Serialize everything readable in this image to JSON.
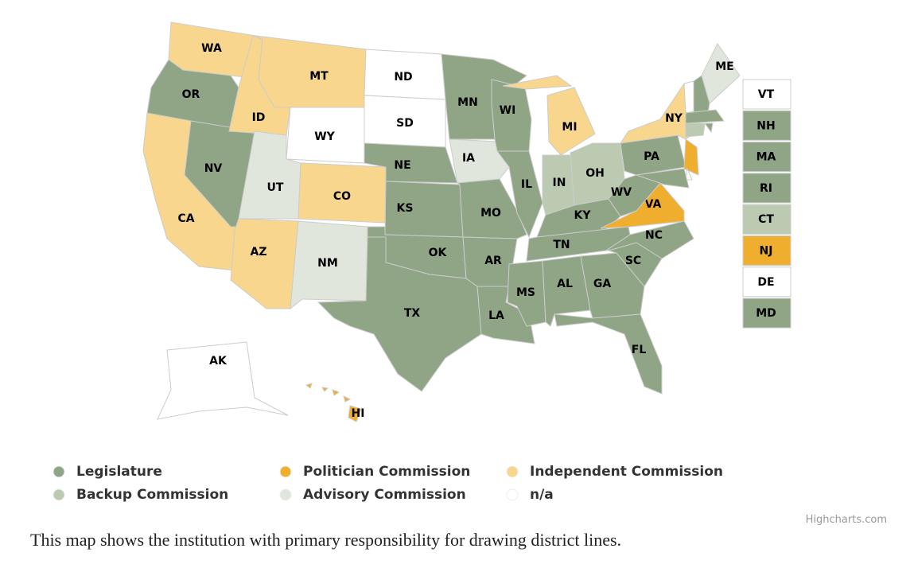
{
  "legend": [
    {
      "label": "Legislature",
      "color": "#8fa585"
    },
    {
      "label": "Politician Commission",
      "color": "#f0ae2e"
    },
    {
      "label": "Independent Commission",
      "color": "#f8d68e"
    },
    {
      "label": "Backup Commission",
      "color": "#bccab1"
    },
    {
      "label": "Advisory Commission",
      "color": "#e0e6dc"
    },
    {
      "label": "n/a",
      "color": "#ffffff"
    }
  ],
  "states": [
    {
      "label": "WA",
      "color": "#f8d68e"
    },
    {
      "label": "OR",
      "color": "#8fa585"
    },
    {
      "label": "CA",
      "color": "#f8d68e"
    },
    {
      "label": "NV",
      "color": "#8fa585"
    },
    {
      "label": "ID",
      "color": "#f8d68e"
    },
    {
      "label": "MT",
      "color": "#f8d68e"
    },
    {
      "label": "WY",
      "color": "#ffffff"
    },
    {
      "label": "UT",
      "color": "#e0e6dc"
    },
    {
      "label": "CO",
      "color": "#f8d68e"
    },
    {
      "label": "AZ",
      "color": "#f8d68e"
    },
    {
      "label": "NM",
      "color": "#e0e6dc"
    },
    {
      "label": "ND",
      "color": "#ffffff"
    },
    {
      "label": "SD",
      "color": "#ffffff"
    },
    {
      "label": "NE",
      "color": "#8fa585"
    },
    {
      "label": "KS",
      "color": "#8fa585"
    },
    {
      "label": "OK",
      "color": "#8fa585"
    },
    {
      "label": "TX",
      "color": "#8fa585"
    },
    {
      "label": "MN",
      "color": "#8fa585"
    },
    {
      "label": "IA",
      "color": "#e0e6dc"
    },
    {
      "label": "MO",
      "color": "#8fa585"
    },
    {
      "label": "AR",
      "color": "#8fa585"
    },
    {
      "label": "LA",
      "color": "#8fa585"
    },
    {
      "label": "WI",
      "color": "#8fa585"
    },
    {
      "label": "IL",
      "color": "#8fa585"
    },
    {
      "label": "MI",
      "color": "#f8d68e"
    },
    {
      "label": "IN",
      "color": "#bccab1"
    },
    {
      "label": "OH",
      "color": "#bccab1"
    },
    {
      "label": "KY",
      "color": "#8fa585"
    },
    {
      "label": "TN",
      "color": "#8fa585"
    },
    {
      "label": "MS",
      "color": "#8fa585"
    },
    {
      "label": "AL",
      "color": "#8fa585"
    },
    {
      "label": "GA",
      "color": "#8fa585"
    },
    {
      "label": "FL",
      "color": "#8fa585"
    },
    {
      "label": "SC",
      "color": "#8fa585"
    },
    {
      "label": "NC",
      "color": "#8fa585"
    },
    {
      "label": "VA",
      "color": "#f0ae2e"
    },
    {
      "label": "WV",
      "color": "#8fa585"
    },
    {
      "label": "PA",
      "color": "#8fa585"
    },
    {
      "label": "NY",
      "color": "#f8d68e"
    },
    {
      "label": "ME",
      "color": "#e0e6dc"
    },
    {
      "label": "AK",
      "color": "#ffffff"
    },
    {
      "label": "HI",
      "color": "#f0ae2e"
    },
    {
      "label": "VT",
      "color": "#ffffff"
    },
    {
      "label": "NH",
      "color": "#8fa585"
    },
    {
      "label": "MA",
      "color": "#8fa585"
    },
    {
      "label": "RI",
      "color": "#8fa585"
    },
    {
      "label": "CT",
      "color": "#bccab1"
    },
    {
      "label": "NJ",
      "color": "#f0ae2e"
    },
    {
      "label": "DE",
      "color": "#ffffff"
    },
    {
      "label": "MD",
      "color": "#8fa585"
    }
  ],
  "credit": "Highcharts.com",
  "caption": "This map shows the institution with primary responsibility for drawing district lines."
}
